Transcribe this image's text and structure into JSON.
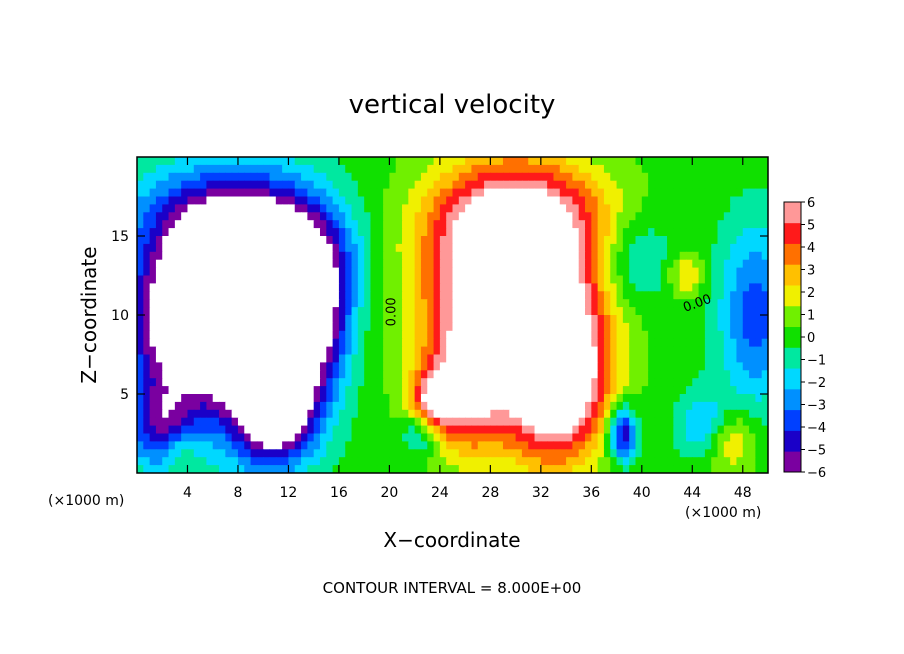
{
  "chart_data": {
    "type": "heatmap",
    "title": "vertical velocity",
    "xlabel": "X−coordinate",
    "ylabel": "Z−coordinate",
    "x_multiplier_label": "(×1000 m)",
    "x_multiplier_label_right": "(×1000 m)",
    "xlim": [
      0,
      50
    ],
    "ylim": [
      0,
      20
    ],
    "x_ticks": [
      4,
      8,
      12,
      16,
      20,
      24,
      28,
      32,
      36,
      40,
      44,
      48
    ],
    "x_tick_labels": [
      "4",
      "8",
      "12",
      "16",
      "20",
      "24",
      "28",
      "32",
      "36",
      "40",
      "44",
      "48"
    ],
    "y_ticks": [
      5,
      10,
      15
    ],
    "y_tick_labels": [
      "5",
      "10",
      "15"
    ],
    "note": "CONTOUR INTERVAL = 8.000E+00",
    "contour_labels": [
      {
        "text": "0.00",
        "x": 20.5,
        "y": 10.2,
        "rotate": -90
      },
      {
        "text": "0.00",
        "x": 44.5,
        "y": 10.5,
        "rotate": -20
      }
    ],
    "colorbar": {
      "position": "right",
      "levels": [
        -6,
        -5,
        -4,
        -3,
        -2,
        -1,
        0,
        1,
        2,
        3,
        4,
        5,
        6
      ],
      "labels": [
        "−6",
        "−5",
        "−4",
        "−3",
        "−2",
        "−1",
        "0",
        "1",
        "2",
        "3",
        "4",
        "5",
        "6"
      ],
      "colors": [
        "#7a00a0",
        "#1a00c8",
        "#0040ff",
        "#0090ff",
        "#00d8ff",
        "#00e8a0",
        "#10e000",
        "#70f000",
        "#f0f000",
        "#ffc000",
        "#ff7000",
        "#ff1a1a",
        "#ff9898"
      ]
    },
    "field": {
      "background": 0,
      "features": [
        {
          "x": 3.5,
          "z": 9.5,
          "sx": 3.2,
          "sz": 3.3,
          "amp": -8
        },
        {
          "x": 7.0,
          "z": 12.0,
          "sx": 3.0,
          "sz": 3.5,
          "amp": -6
        },
        {
          "x": 10.0,
          "z": 9.0,
          "sx": 3.2,
          "sz": 5.0,
          "amp": -9
        },
        {
          "x": 13.0,
          "z": 13.5,
          "sx": 3.0,
          "sz": 2.8,
          "amp": -6
        },
        {
          "x": 5.0,
          "z": 16.0,
          "sx": 4.5,
          "sz": 2.5,
          "amp": -4
        },
        {
          "x": 11.0,
          "z": 4.0,
          "sx": 2.0,
          "sz": 2.0,
          "amp": -7
        },
        {
          "x": 14.5,
          "z": 9.0,
          "sx": 1.6,
          "sz": 3.0,
          "amp": -4
        },
        {
          "x": 2.0,
          "z": 3.0,
          "sx": 2.0,
          "sz": 2.0,
          "amp": -5
        },
        {
          "x": 29.5,
          "z": 10.5,
          "sx": 4.5,
          "sz": 5.0,
          "amp": 10
        },
        {
          "x": 30.5,
          "z": 16.0,
          "sx": 5.0,
          "sz": 2.6,
          "amp": 5
        },
        {
          "x": 33.5,
          "z": 6.0,
          "sx": 2.5,
          "sz": 3.5,
          "amp": 8
        },
        {
          "x": 26.0,
          "z": 5.0,
          "sx": 2.0,
          "sz": 2.5,
          "amp": 4
        },
        {
          "x": 23.5,
          "z": 4.5,
          "sx": 1.2,
          "sz": 1.3,
          "amp": 5
        },
        {
          "x": 22.5,
          "z": 2.5,
          "sx": 1.0,
          "sz": 1.0,
          "amp": -3
        },
        {
          "x": 38.5,
          "z": 2.5,
          "sx": 0.8,
          "sz": 1.2,
          "amp": -6
        },
        {
          "x": 39.5,
          "z": 13.5,
          "sx": 2.0,
          "sz": 2.0,
          "amp": -2.5
        },
        {
          "x": 45.0,
          "z": 3.0,
          "sx": 1.5,
          "sz": 1.5,
          "amp": -3
        },
        {
          "x": 47.0,
          "z": 2.0,
          "sx": 1.5,
          "sz": 1.5,
          "amp": 3
        },
        {
          "x": 49.0,
          "z": 10.0,
          "sx": 2.0,
          "sz": 4.0,
          "amp": -4
        },
        {
          "x": 43.5,
          "z": 12.5,
          "sx": 1.0,
          "sz": 1.0,
          "amp": 2.5
        },
        {
          "x": 3.5,
          "z": 1.5,
          "sx": 1.0,
          "sz": 1.0,
          "amp": 2
        }
      ]
    }
  }
}
